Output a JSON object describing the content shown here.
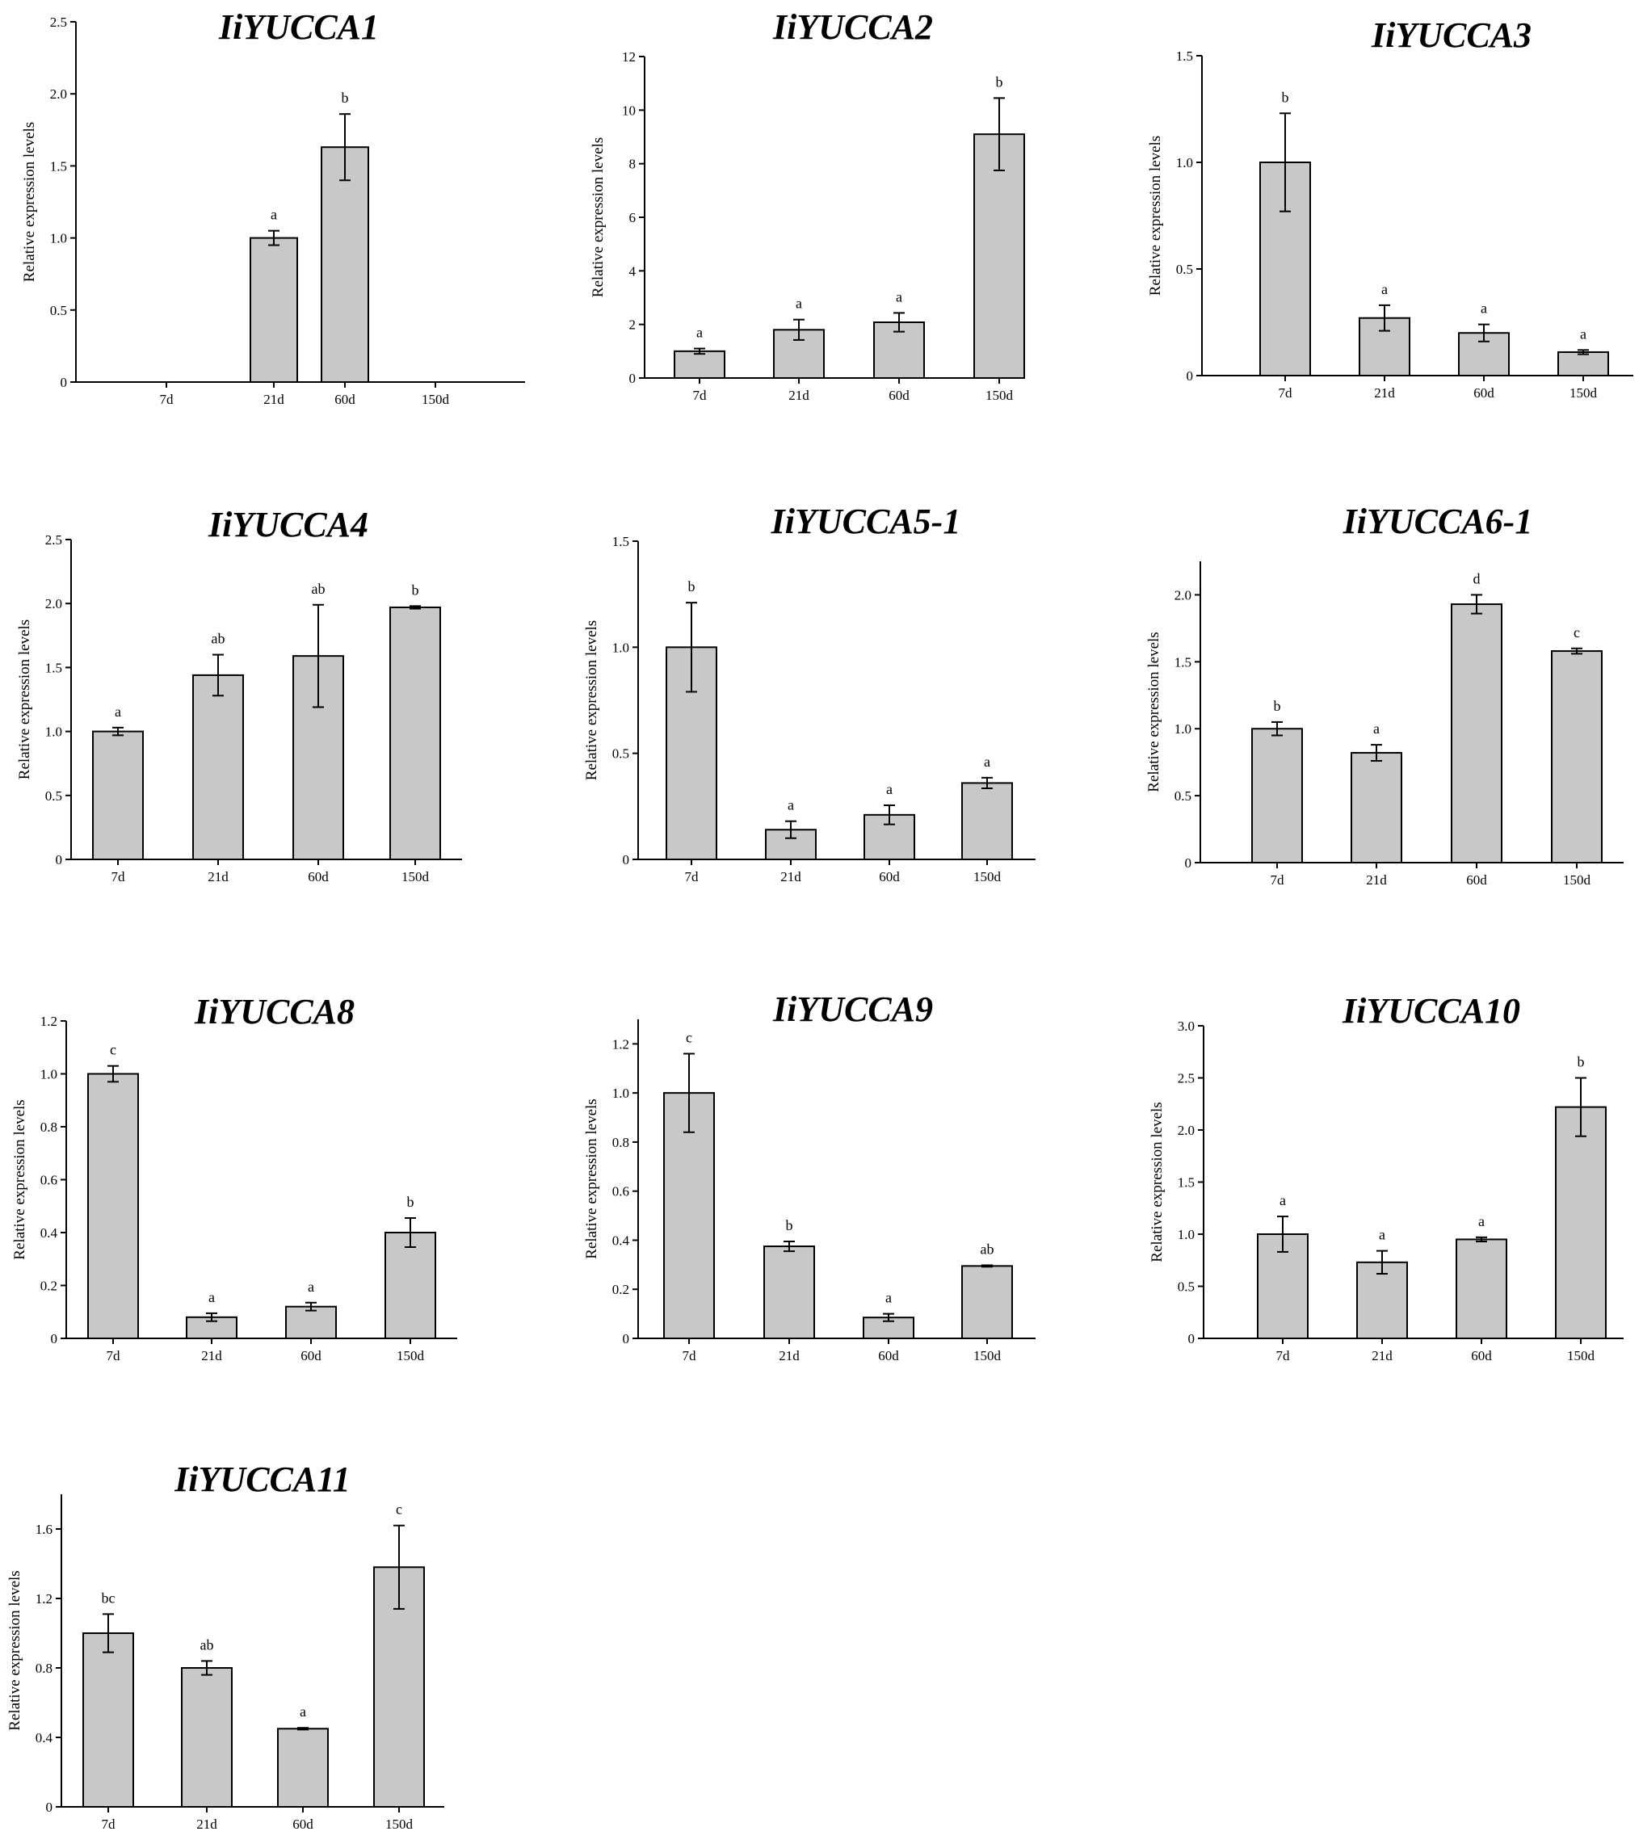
{
  "chart_data": [
    {
      "type": "bar",
      "title": "IiYUCCA1",
      "ylabel": "Relative expression levels",
      "xlabel": "",
      "categories": [
        "7d",
        "21d",
        "60d",
        "150d"
      ],
      "values": [
        null,
        1.0,
        1.63,
        null
      ],
      "errors": [
        null,
        0.05,
        0.23,
        null
      ],
      "sig": [
        "",
        "a",
        "b",
        ""
      ],
      "ylim": [
        0,
        2.5
      ],
      "yticks": [
        "0",
        "0.5",
        "1.0",
        "1.5",
        "2.0",
        "2.5"
      ]
    },
    {
      "type": "bar",
      "title": "IiYUCCA2",
      "ylabel": "Relative expression levels",
      "xlabel": "",
      "categories": [
        "7d",
        "21d",
        "60d",
        "150d"
      ],
      "values": [
        1.0,
        1.8,
        2.08,
        9.1
      ],
      "errors": [
        0.1,
        0.38,
        0.35,
        1.35
      ],
      "sig": [
        "a",
        "a",
        "a",
        "b"
      ],
      "ylim": [
        0,
        12
      ],
      "yticks": [
        "0",
        "2",
        "4",
        "6",
        "8",
        "10",
        "12"
      ]
    },
    {
      "type": "bar",
      "title": "IiYUCCA3",
      "ylabel": "Relative expression levels",
      "xlabel": "",
      "categories": [
        "7d",
        "21d",
        "60d",
        "150d"
      ],
      "values": [
        1.0,
        0.27,
        0.2,
        0.11
      ],
      "errors": [
        0.23,
        0.06,
        0.04,
        0.01
      ],
      "sig": [
        "b",
        "a",
        "a",
        "a"
      ],
      "ylim": [
        0,
        1.5
      ],
      "yticks": [
        "0",
        "0.5",
        "1.0",
        "1.5"
      ]
    },
    {
      "type": "bar",
      "title": "IiYUCCA4",
      "ylabel": "Relative expression levels",
      "xlabel": "",
      "categories": [
        "7d",
        "21d",
        "60d",
        "150d"
      ],
      "values": [
        1.0,
        1.44,
        1.59,
        1.97
      ],
      "errors": [
        0.03,
        0.16,
        0.4,
        0.01
      ],
      "sig": [
        "a",
        "ab",
        "ab",
        "b"
      ],
      "ylim": [
        0,
        2.5
      ],
      "yticks": [
        "0",
        "0.5",
        "1.0",
        "1.5",
        "2.0",
        "2.5"
      ]
    },
    {
      "type": "bar",
      "title": "IiYUCCA5-1",
      "ylabel": "Relative expression levels",
      "xlabel": "",
      "categories": [
        "7d",
        "21d",
        "60d",
        "150d"
      ],
      "values": [
        1.0,
        0.14,
        0.21,
        0.36
      ],
      "errors": [
        0.21,
        0.04,
        0.045,
        0.025
      ],
      "sig": [
        "b",
        "a",
        "a",
        "a"
      ],
      "ylim": [
        0,
        1.5
      ],
      "yticks": [
        "0",
        "0.5",
        "1.0",
        "1.5"
      ]
    },
    {
      "type": "bar",
      "title": "IiYUCCA6-1",
      "ylabel": "Relative expression levels",
      "xlabel": "",
      "categories": [
        "7d",
        "21d",
        "60d",
        "150d"
      ],
      "values": [
        1.0,
        0.82,
        1.93,
        1.58
      ],
      "errors": [
        0.05,
        0.06,
        0.07,
        0.02
      ],
      "sig": [
        "b",
        "a",
        "d",
        "c"
      ],
      "ylim": [
        0,
        2.25
      ],
      "yticks": [
        "0",
        "0.5",
        "1.0",
        "1.5",
        "2.0"
      ]
    },
    {
      "type": "bar",
      "title": "IiYUCCA8",
      "ylabel": "Relative expression levels",
      "xlabel": "",
      "categories": [
        "7d",
        "21d",
        "60d",
        "150d"
      ],
      "values": [
        1.0,
        0.08,
        0.12,
        0.4
      ],
      "errors": [
        0.03,
        0.015,
        0.015,
        0.055
      ],
      "sig": [
        "c",
        "a",
        "a",
        "b"
      ],
      "ylim": [
        0,
        1.2
      ],
      "yticks": [
        "0",
        "0.2",
        "0.4",
        "0.6",
        "0.8",
        "1.0",
        "1.2"
      ]
    },
    {
      "type": "bar",
      "title": "IiYUCCA9",
      "ylabel": "Relative expression levels",
      "xlabel": "",
      "categories": [
        "7d",
        "21d",
        "60d",
        "150d"
      ],
      "values": [
        1.0,
        0.375,
        0.085,
        0.295
      ],
      "errors": [
        0.16,
        0.02,
        0.015,
        0.003
      ],
      "sig": [
        "c",
        "b",
        "a",
        "ab"
      ],
      "ylim": [
        0,
        1.3
      ],
      "yticks": [
        "0",
        "0.2",
        "0.4",
        "0.6",
        "0.8",
        "1.0",
        "1.2"
      ]
    },
    {
      "type": "bar",
      "title": "IiYUCCA10",
      "ylabel": "Relative expression levels",
      "xlabel": "",
      "categories": [
        "7d",
        "21d",
        "60d",
        "150d"
      ],
      "values": [
        1.0,
        0.73,
        0.95,
        2.22
      ],
      "errors": [
        0.17,
        0.11,
        0.02,
        0.28
      ],
      "sig": [
        "a",
        "a",
        "a",
        "b"
      ],
      "ylim": [
        0,
        3.0
      ],
      "yticks": [
        "0",
        "0.5",
        "1.0",
        "1.5",
        "2.0",
        "2.5",
        "3.0"
      ]
    },
    {
      "type": "bar",
      "title": "IiYUCCA11",
      "ylabel": "Relative expression levels",
      "xlabel": "",
      "categories": [
        "7d",
        "21d",
        "60d",
        "150d"
      ],
      "values": [
        1.0,
        0.8,
        0.45,
        1.38
      ],
      "errors": [
        0.11,
        0.04,
        0.005,
        0.24
      ],
      "sig": [
        "bc",
        "ab",
        "a",
        "c"
      ],
      "ylim": [
        0,
        1.8
      ],
      "yticks": [
        "0",
        "0.4",
        "0.8",
        "1.2",
        "1.6"
      ]
    }
  ]
}
